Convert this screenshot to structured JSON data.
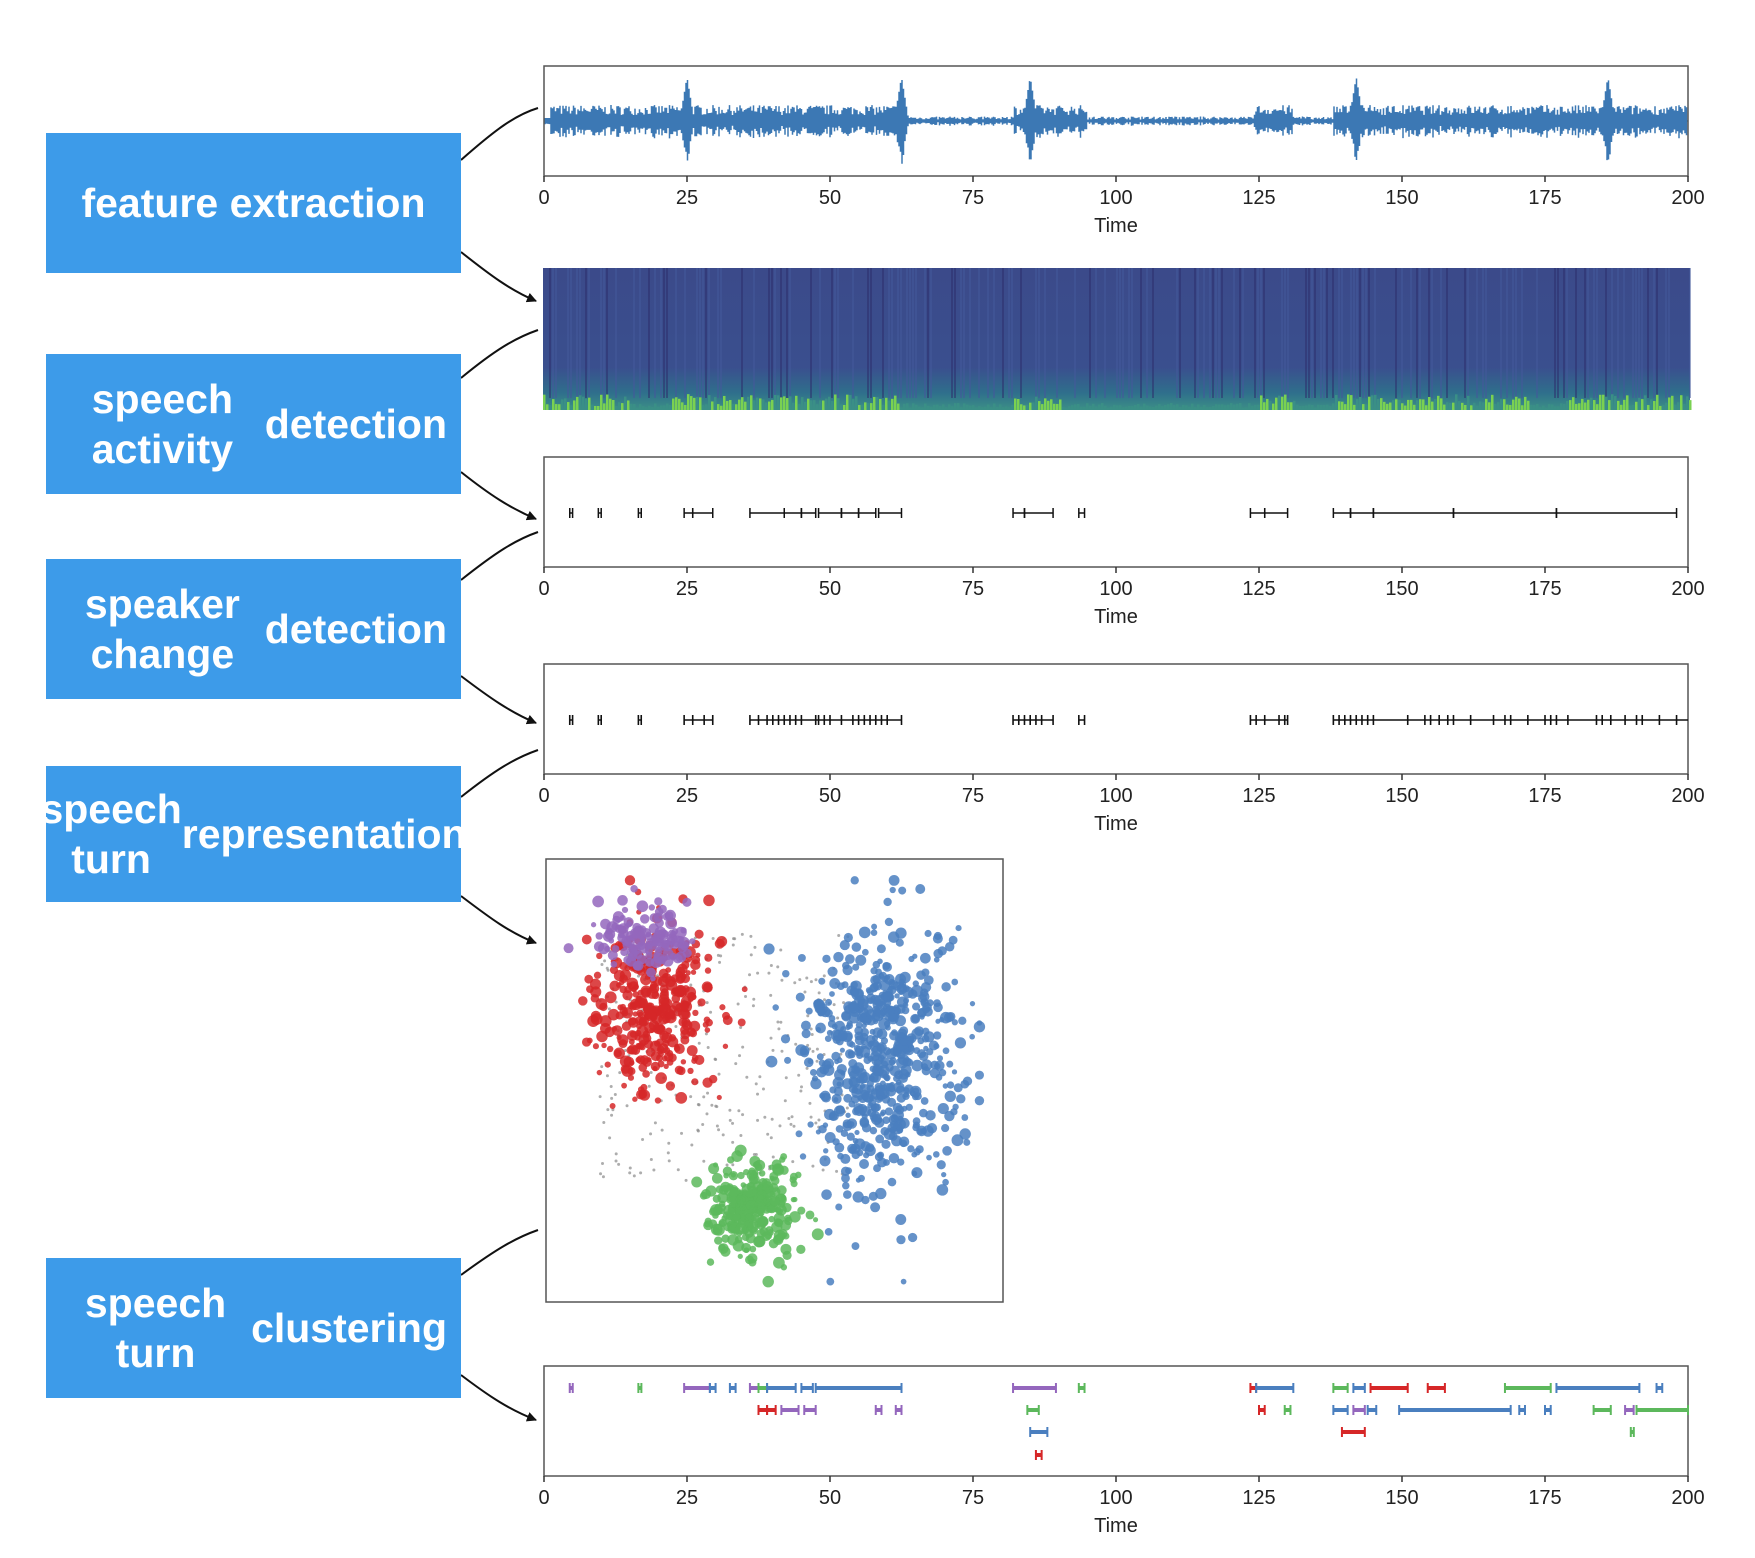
{
  "stages": [
    {
      "id": "feature-extraction",
      "lines": [
        "feature extraction"
      ]
    },
    {
      "id": "speech-activity-detection",
      "lines": [
        "speech activity",
        "detection"
      ]
    },
    {
      "id": "speaker-change-detection",
      "lines": [
        "speaker change",
        "detection"
      ]
    },
    {
      "id": "speech-turn-representation",
      "lines": [
        "speech turn",
        "representation"
      ]
    },
    {
      "id": "speech-turn-clustering",
      "lines": [
        "speech turn",
        "clustering"
      ]
    }
  ],
  "colors": {
    "stage_box": "#3d9be9",
    "waveform": "#3c78b4",
    "spectrogram_base": "#3b4c8c",
    "spectrogram_low": "#7ad151",
    "blue": "#4a7fbf",
    "red": "#d62728",
    "green": "#5cb85c",
    "purple": "#9467bd"
  },
  "chart_data": [
    {
      "id": "waveform",
      "type": "line",
      "xlabel": "Time",
      "xlim": [
        0,
        200
      ],
      "xticks": [
        "0",
        "25",
        "50",
        "75",
        "100",
        "125",
        "150",
        "175",
        "200"
      ],
      "loud_bursts": [
        25,
        62.5,
        85,
        142,
        186
      ],
      "quiet_spans": [
        [
          63,
          82
        ],
        [
          95,
          124
        ],
        [
          131,
          138
        ]
      ]
    },
    {
      "id": "spectrogram",
      "type": "heatmap",
      "xlim": [
        0,
        200
      ],
      "bright_low_band_spans": [
        [
          0,
          15
        ],
        [
          22,
          62
        ],
        [
          82,
          90
        ],
        [
          125,
          131
        ],
        [
          138,
          172
        ],
        [
          178,
          200
        ]
      ]
    },
    {
      "id": "speech-activity",
      "type": "scatter",
      "xlabel": "Time",
      "xlim": [
        0,
        200
      ],
      "xticks": [
        "0",
        "25",
        "50",
        "75",
        "100",
        "125",
        "150",
        "175",
        "200"
      ],
      "segments": [
        [
          4.5,
          5
        ],
        [
          9.5,
          10
        ],
        [
          16.5,
          17
        ],
        [
          24.5,
          26
        ],
        [
          26,
          29.5
        ],
        [
          36,
          42
        ],
        [
          42,
          45
        ],
        [
          45,
          47.5
        ],
        [
          48,
          52
        ],
        [
          52,
          55
        ],
        [
          55,
          58
        ],
        [
          58.5,
          62.5
        ],
        [
          82,
          84
        ],
        [
          84,
          89
        ],
        [
          93.5,
          94.5
        ],
        [
          123.5,
          126
        ],
        [
          126,
          130
        ],
        [
          138,
          141
        ],
        [
          141,
          145
        ],
        [
          145,
          159
        ],
        [
          159,
          177
        ],
        [
          177,
          198
        ]
      ]
    },
    {
      "id": "speaker-change",
      "type": "scatter",
      "xlabel": "Time",
      "xlim": [
        0,
        200
      ],
      "xticks": [
        "0",
        "25",
        "50",
        "75",
        "100",
        "125",
        "150",
        "175",
        "200"
      ],
      "boundaries": [
        4.5,
        5,
        9.5,
        10,
        16.5,
        17,
        24.5,
        26,
        28,
        29.5,
        36,
        37.5,
        39,
        40,
        41,
        42,
        43,
        44,
        45,
        47.5,
        48,
        49,
        50,
        52,
        54,
        55,
        56,
        57,
        58,
        59,
        60,
        62.5,
        82,
        83,
        84,
        85,
        86,
        87,
        89,
        93.5,
        94.5,
        123.5,
        124.5,
        126,
        128.5,
        129.5,
        130,
        138,
        139,
        140,
        141,
        142,
        143,
        144,
        145,
        151,
        154,
        155,
        156.5,
        158,
        159,
        162,
        166,
        168,
        169,
        172,
        175,
        176,
        177,
        179,
        184,
        185,
        186.5,
        189,
        191,
        192,
        195,
        198
      ]
    },
    {
      "id": "embeddings",
      "type": "scatter",
      "clusters": [
        {
          "name": "",
          "color": "blue",
          "center": [
            0.75,
            0.45
          ],
          "spread": [
            0.22,
            0.35
          ],
          "count": 620
        },
        {
          "name": "",
          "color": "red",
          "center": [
            0.22,
            0.33
          ],
          "spread": [
            0.17,
            0.23
          ],
          "count": 360
        },
        {
          "name": "",
          "color": "green",
          "center": [
            0.45,
            0.8
          ],
          "spread": [
            0.12,
            0.13
          ],
          "count": 300
        },
        {
          "name": "",
          "color": "purple",
          "center": [
            0.2,
            0.16
          ],
          "spread": [
            0.13,
            0.1
          ],
          "count": 140
        }
      ]
    },
    {
      "id": "clustering",
      "type": "scatter",
      "xlabel": "Time",
      "xlim": [
        0,
        200
      ],
      "xticks": [
        "0",
        "25",
        "50",
        "75",
        "100",
        "125",
        "150",
        "175",
        "200"
      ],
      "segments": [
        {
          "row": 0,
          "start": 4.5,
          "end": 5,
          "color": "purple"
        },
        {
          "row": 0,
          "start": 16.5,
          "end": 17,
          "color": "green"
        },
        {
          "row": 0,
          "start": 24.5,
          "end": 29,
          "color": "purple"
        },
        {
          "row": 0,
          "start": 29,
          "end": 30,
          "color": "blue"
        },
        {
          "row": 0,
          "start": 32.5,
          "end": 33.5,
          "color": "blue"
        },
        {
          "row": 0,
          "start": 36,
          "end": 37.5,
          "color": "purple"
        },
        {
          "row": 0,
          "start": 37.5,
          "end": 39,
          "color": "green"
        },
        {
          "row": 0,
          "start": 39,
          "end": 44,
          "color": "blue"
        },
        {
          "row": 0,
          "start": 45,
          "end": 47,
          "color": "blue"
        },
        {
          "row": 0,
          "start": 47.5,
          "end": 62.5,
          "color": "blue"
        },
        {
          "row": 0,
          "start": 82,
          "end": 89.5,
          "color": "purple"
        },
        {
          "row": 0,
          "start": 93.5,
          "end": 94.5,
          "color": "green"
        },
        {
          "row": 0,
          "start": 123.5,
          "end": 124.5,
          "color": "red"
        },
        {
          "row": 0,
          "start": 124.5,
          "end": 131,
          "color": "blue"
        },
        {
          "row": 0,
          "start": 138,
          "end": 140.5,
          "color": "green"
        },
        {
          "row": 0,
          "start": 141.5,
          "end": 143.5,
          "color": "blue"
        },
        {
          "row": 0,
          "start": 144.5,
          "end": 151,
          "color": "red"
        },
        {
          "row": 0,
          "start": 154.5,
          "end": 157.5,
          "color": "red"
        },
        {
          "row": 0,
          "start": 168,
          "end": 176,
          "color": "green"
        },
        {
          "row": 0,
          "start": 177,
          "end": 191.5,
          "color": "blue"
        },
        {
          "row": 0,
          "start": 194.5,
          "end": 195.5,
          "color": "blue"
        },
        {
          "row": 1,
          "start": 37.5,
          "end": 39,
          "color": "red"
        },
        {
          "row": 1,
          "start": 39,
          "end": 40.5,
          "color": "red"
        },
        {
          "row": 1,
          "start": 41.5,
          "end": 44.5,
          "color": "purple"
        },
        {
          "row": 1,
          "start": 45.5,
          "end": 47.5,
          "color": "purple"
        },
        {
          "row": 1,
          "start": 58,
          "end": 59,
          "color": "purple"
        },
        {
          "row": 1,
          "start": 61.5,
          "end": 62.5,
          "color": "purple"
        },
        {
          "row": 1,
          "start": 84.5,
          "end": 86.5,
          "color": "green"
        },
        {
          "row": 1,
          "start": 125,
          "end": 126,
          "color": "red"
        },
        {
          "row": 1,
          "start": 129.5,
          "end": 130.5,
          "color": "green"
        },
        {
          "row": 1,
          "start": 138,
          "end": 140.5,
          "color": "blue"
        },
        {
          "row": 1,
          "start": 141.5,
          "end": 143.5,
          "color": "purple"
        },
        {
          "row": 1,
          "start": 144,
          "end": 145.5,
          "color": "blue"
        },
        {
          "row": 1,
          "start": 149.5,
          "end": 169,
          "color": "blue"
        },
        {
          "row": 1,
          "start": 170.5,
          "end": 171.5,
          "color": "blue"
        },
        {
          "row": 1,
          "start": 175,
          "end": 176,
          "color": "blue"
        },
        {
          "row": 1,
          "start": 183.5,
          "end": 186.5,
          "color": "green"
        },
        {
          "row": 1,
          "start": 189,
          "end": 190.5,
          "color": "purple"
        },
        {
          "row": 1,
          "start": 191,
          "end": 200,
          "color": "green"
        },
        {
          "row": 2,
          "start": 85,
          "end": 88,
          "color": "blue"
        },
        {
          "row": 2,
          "start": 139.5,
          "end": 143.5,
          "color": "red"
        },
        {
          "row": 2,
          "start": 190,
          "end": 190.5,
          "color": "green"
        },
        {
          "row": 3,
          "start": 86,
          "end": 87,
          "color": "red"
        }
      ]
    }
  ]
}
